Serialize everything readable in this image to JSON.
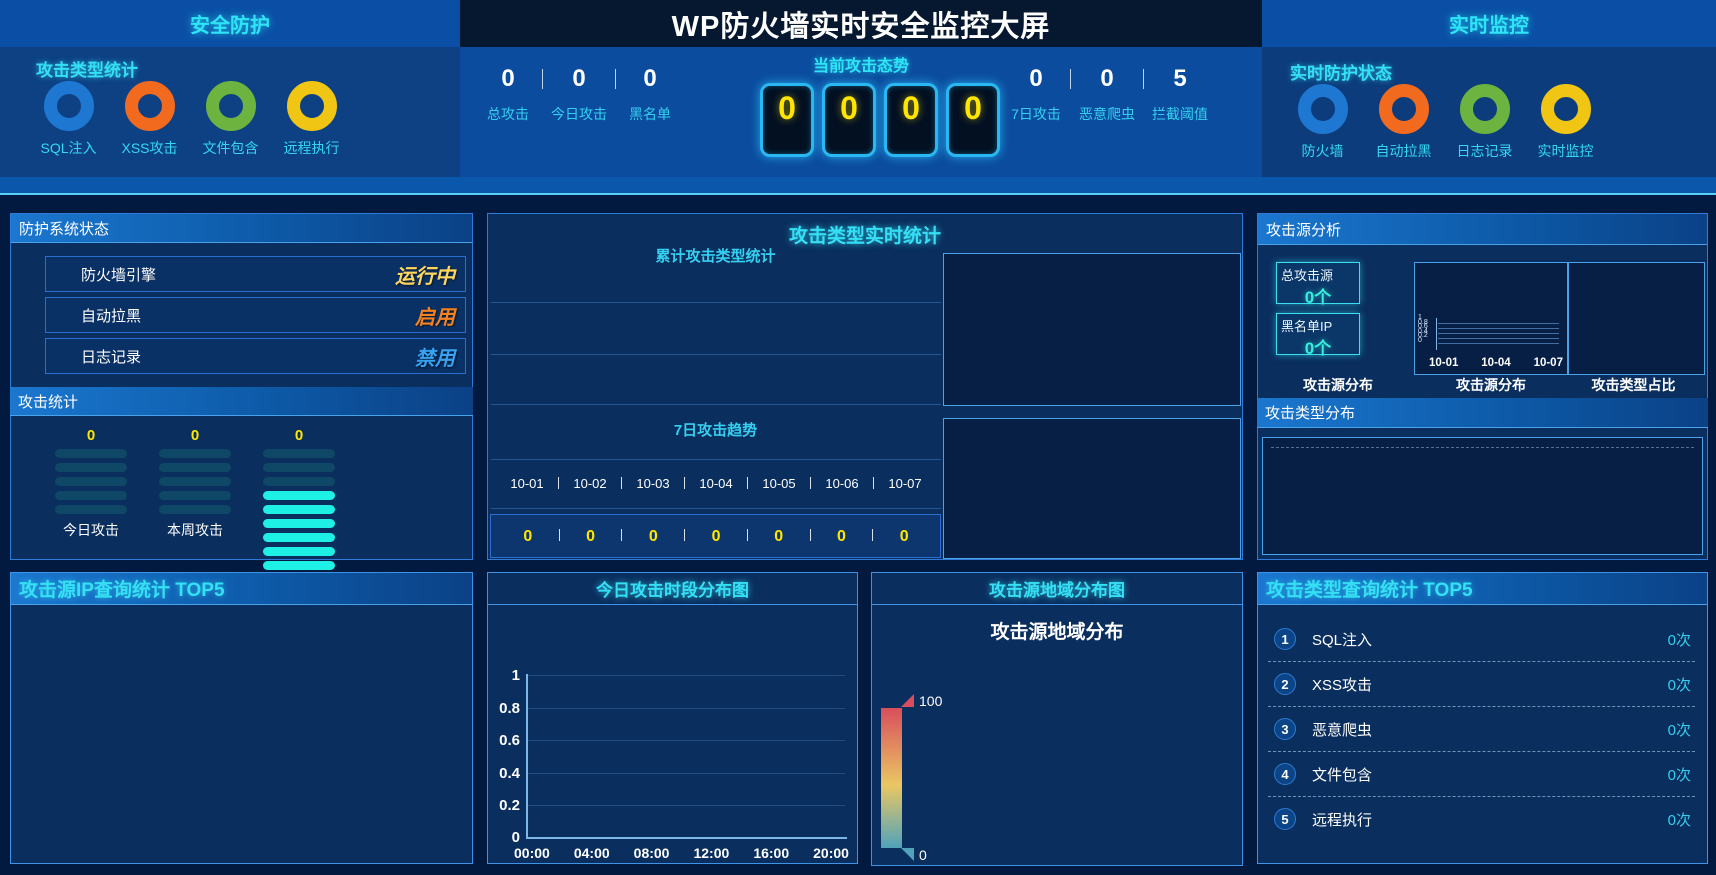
{
  "header": {
    "left_title": "安全防护",
    "main_title": "WP防火墙实时安全监控大屏",
    "right_title": "实时监控"
  },
  "top_left": {
    "title": "攻击类型统计",
    "rings": [
      {
        "label": "SQL注入",
        "color": "#1e78d2"
      },
      {
        "label": "XSS攻击",
        "color": "#f26a1e"
      },
      {
        "label": "文件包含",
        "color": "#6cb33f"
      },
      {
        "label": "远程执行",
        "color": "#f0c514"
      }
    ]
  },
  "top_center": {
    "title": "当前攻击态势",
    "left_stats": [
      {
        "value": "0",
        "label": "总攻击"
      },
      {
        "value": "0",
        "label": "今日攻击"
      },
      {
        "value": "0",
        "label": "黑名单"
      }
    ],
    "counter_digits": [
      "0",
      "0",
      "0",
      "0"
    ],
    "counter_digit_color": "#ffe600",
    "right_stats": [
      {
        "value": "0",
        "label": "7日攻击"
      },
      {
        "value": "0",
        "label": "恶意爬虫"
      },
      {
        "value": "5",
        "label": "拦截阈值"
      }
    ]
  },
  "top_right": {
    "title": "实时防护状态",
    "rings": [
      {
        "label": "防火墙",
        "color": "#1e78d2"
      },
      {
        "label": "自动拉黑",
        "color": "#f26a1e"
      },
      {
        "label": "日志记录",
        "color": "#6cb33f"
      },
      {
        "label": "实时监控",
        "color": "#f0c514"
      }
    ]
  },
  "system_status": {
    "title": "防护系统状态",
    "rows": [
      {
        "label": "防火墙引擎",
        "value": "运行中",
        "color": "#ffd75e"
      },
      {
        "label": "自动拉黑",
        "value": "启用",
        "color": "#f5821e"
      },
      {
        "label": "日志记录",
        "value": "禁用",
        "color": "#38a2f0"
      }
    ]
  },
  "attack_stats": {
    "title": "攻击统计",
    "columns": [
      {
        "value": "0",
        "label": "今日攻击",
        "bars_total": 5,
        "bars_lit": 0
      },
      {
        "value": "0",
        "label": "本周攻击",
        "bars_total": 5,
        "bars_lit": 0
      },
      {
        "value": "0",
        "label": "",
        "bars_total": 9,
        "bars_lit": 6
      }
    ],
    "bar_color": "#0f4766",
    "bar_lit_color": "#1ff0e6"
  },
  "realtime_panel": {
    "title": "攻击类型实时统计",
    "cumulative_subtitle": "累计攻击类型统计",
    "trend_subtitle": "7日攻击趋势",
    "trend_dates": [
      "10-01",
      "10-02",
      "10-03",
      "10-04",
      "10-05",
      "10-06",
      "10-07"
    ],
    "trend_values": [
      "0",
      "0",
      "0",
      "0",
      "0",
      "0",
      "0"
    ]
  },
  "source_panel": {
    "title": "攻击源分析",
    "stat_boxes": [
      {
        "label": "总攻击源",
        "value": "0个"
      },
      {
        "label": "黑名单IP",
        "value": "0个"
      }
    ],
    "mini_chart": {
      "y_ticks": [
        "1",
        "0.8",
        "0.6",
        "0.4",
        "0.2",
        "0"
      ],
      "x_ticks": [
        "10-01",
        "10-04",
        "10-07"
      ]
    },
    "sub_labels": [
      "攻击源分布",
      "攻击源分布",
      "攻击类型占比"
    ],
    "dist_title": "攻击类型分布"
  },
  "bottom": {
    "ip_top5": {
      "title": "攻击源IP查询统计 TOP5"
    },
    "time_chart": {
      "title": "今日攻击时段分布图",
      "y_ticks": [
        "1",
        "0.8",
        "0.6",
        "0.4",
        "0.2",
        "0"
      ],
      "x_ticks": [
        "00:00",
        "04:00",
        "08:00",
        "12:00",
        "16:00",
        "20:00"
      ]
    },
    "geo_chart": {
      "title": "攻击源地域分布图",
      "inner_title": "攻击源地域分布",
      "legend_max": "100",
      "legend_min": "0",
      "legend_colors": [
        "#d94e5d",
        "#eac763",
        "#50a3ba"
      ]
    },
    "type_top5": {
      "title": "攻击类型查询统计 TOP5",
      "rows": [
        {
          "rank": "1",
          "label": "SQL注入",
          "value": "0次"
        },
        {
          "rank": "2",
          "label": "XSS攻击",
          "value": "0次"
        },
        {
          "rank": "3",
          "label": "恶意爬虫",
          "value": "0次"
        },
        {
          "rank": "4",
          "label": "文件包含",
          "value": "0次"
        },
        {
          "rank": "5",
          "label": "远程执行",
          "value": "0次"
        }
      ]
    }
  }
}
